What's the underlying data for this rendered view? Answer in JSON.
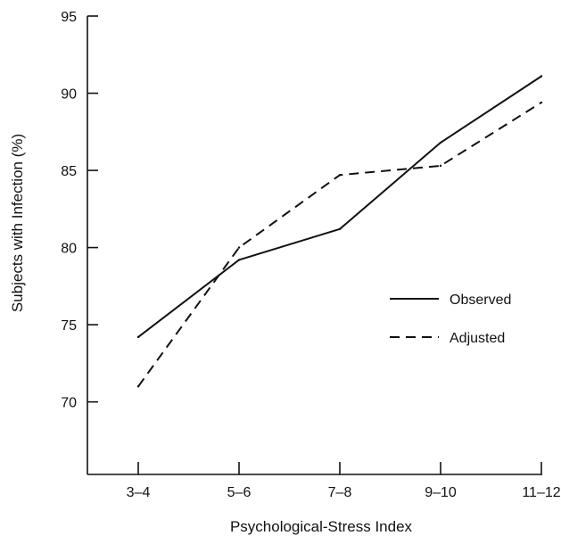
{
  "chart_data": {
    "type": "line",
    "title": "",
    "xlabel": "Psychological-Stress Index",
    "ylabel": "Subjects with Infection (%)",
    "categories": [
      "3–4",
      "5–6",
      "7–8",
      "9–10",
      "11–12"
    ],
    "y_ticks": [
      70,
      75,
      80,
      85,
      90,
      95
    ],
    "ylim": [
      65.3,
      95
    ],
    "grid": false,
    "legend_position": "right",
    "series": [
      {
        "name": "Observed",
        "style": "solid",
        "values": [
          74.2,
          79.2,
          81.2,
          86.8,
          91.1
        ]
      },
      {
        "name": "Adjusted",
        "style": "dashed",
        "values": [
          71.0,
          80.0,
          84.7,
          85.3,
          89.4
        ]
      }
    ],
    "colors": {
      "line": "#111111",
      "axis": "#111111"
    }
  }
}
